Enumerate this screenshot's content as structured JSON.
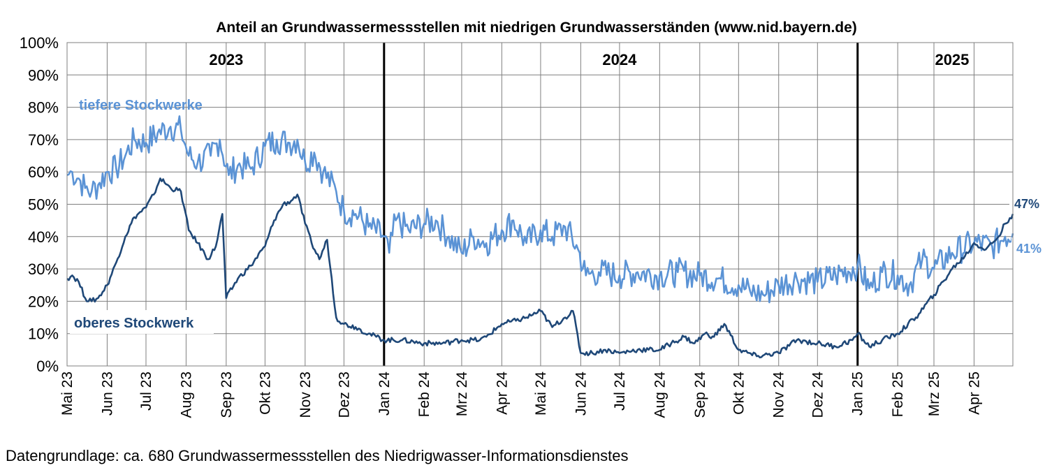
{
  "source_note": "Datengrundlage: ca. 680 Grundwassermessstellen des Niedrigwasser-Informationsdienstes",
  "colors": {
    "tiefere": "#5b93d5",
    "oberes": "#1f4878",
    "grid": "#7f7f7f",
    "year_divider": "#000000"
  },
  "chart_data": {
    "type": "line",
    "title": "Anteil an Grundwassermessstellen mit niedrigen Grundwasserständen (www.nid.bayern.de)",
    "xlabel": "",
    "ylabel": "",
    "ylim": [
      0,
      100
    ],
    "y_ticks": [
      "0%",
      "10%",
      "20%",
      "30%",
      "40%",
      "50%",
      "60%",
      "70%",
      "80%",
      "90%",
      "100%"
    ],
    "x_range": [
      "2023-05-01",
      "2025-05-01"
    ],
    "x_tick_labels": [
      "Mai 23",
      "Jun 23",
      "Jul 23",
      "Aug 23",
      "Sep 23",
      "Okt 23",
      "Nov 23",
      "Dez 23",
      "Jan 24",
      "Feb 24",
      "Mrz 24",
      "Apr 24",
      "Mai 24",
      "Jun 24",
      "Jul 24",
      "Aug 24",
      "Sep 24",
      "Okt 24",
      "Nov 24",
      "Dez 24",
      "Jan 25",
      "Feb 25",
      "Mrz 25",
      "Apr 25"
    ],
    "x_tick_dates": [
      "2023-05-01",
      "2023-06-01",
      "2023-07-01",
      "2023-08-01",
      "2023-09-01",
      "2023-10-01",
      "2023-11-01",
      "2023-12-01",
      "2024-01-01",
      "2024-02-01",
      "2024-03-01",
      "2024-04-01",
      "2024-05-01",
      "2024-06-01",
      "2024-07-01",
      "2024-08-01",
      "2024-09-01",
      "2024-10-01",
      "2024-11-01",
      "2024-12-01",
      "2025-01-01",
      "2025-02-01",
      "2025-03-01",
      "2025-04-01"
    ],
    "grid": true,
    "year_labels": [
      {
        "text": "2023",
        "date": "2023-09-01"
      },
      {
        "text": "2024",
        "date": "2024-07-01"
      },
      {
        "text": "2025",
        "date": "2025-03-15"
      }
    ],
    "year_dividers": [
      "2024-01-01",
      "2025-01-01"
    ],
    "series": [
      {
        "name": "tiefere Stockwerke",
        "end_label": "41%",
        "x": [
          "2023-05-01",
          "2023-05-05",
          "2023-05-10",
          "2023-05-15",
          "2023-05-20",
          "2023-05-25",
          "2023-06-01",
          "2023-06-08",
          "2023-06-15",
          "2023-06-22",
          "2023-07-01",
          "2023-07-10",
          "2023-07-20",
          "2023-07-28",
          "2023-08-03",
          "2023-08-10",
          "2023-08-20",
          "2023-08-27",
          "2023-09-03",
          "2023-09-10",
          "2023-09-20",
          "2023-10-01",
          "2023-10-10",
          "2023-10-20",
          "2023-10-26",
          "2023-11-01",
          "2023-11-08",
          "2023-11-15",
          "2023-11-25",
          "2023-12-01",
          "2023-12-10",
          "2023-12-20",
          "2024-01-01",
          "2024-01-05",
          "2024-01-10",
          "2024-01-20",
          "2024-02-01",
          "2024-02-10",
          "2024-02-20",
          "2024-03-01",
          "2024-03-10",
          "2024-03-20",
          "2024-04-01",
          "2024-04-10",
          "2024-04-20",
          "2024-05-01",
          "2024-05-10",
          "2024-05-20",
          "2024-05-30",
          "2024-06-05",
          "2024-06-15",
          "2024-07-01",
          "2024-07-15",
          "2024-08-01",
          "2024-08-15",
          "2024-09-01",
          "2024-09-15",
          "2024-10-01",
          "2024-10-10",
          "2024-10-20",
          "2024-11-01",
          "2024-11-15",
          "2024-12-01",
          "2024-12-15",
          "2025-01-01",
          "2025-01-10",
          "2025-01-20",
          "2025-02-01",
          "2025-02-10",
          "2025-02-20",
          "2025-03-01",
          "2025-03-15",
          "2025-04-01",
          "2025-04-15",
          "2025-04-25",
          "2025-05-01"
        ],
        "values": [
          59,
          60,
          58,
          55,
          54,
          56,
          60,
          61,
          65,
          70,
          69,
          72,
          74,
          73,
          65,
          63,
          65,
          70,
          59,
          62,
          61,
          68,
          70,
          69,
          70,
          63,
          66,
          60,
          54,
          48,
          47,
          43,
          40,
          35,
          45,
          42,
          44,
          45,
          40,
          35,
          40,
          38,
          42,
          45,
          38,
          42,
          40,
          43,
          36,
          28,
          29,
          28,
          29,
          28,
          29,
          28,
          27,
          25,
          23,
          22,
          25,
          27,
          26,
          28,
          31,
          24,
          29,
          28,
          25,
          33,
          30,
          35,
          38,
          37,
          40,
          41
        ]
      },
      {
        "name": "oberes Stockwerk",
        "end_label": "47%",
        "x": [
          "2023-05-01",
          "2023-05-05",
          "2023-05-10",
          "2023-05-15",
          "2023-05-20",
          "2023-05-25",
          "2023-06-01",
          "2023-06-08",
          "2023-06-15",
          "2023-06-22",
          "2023-07-01",
          "2023-07-07",
          "2023-07-12",
          "2023-07-20",
          "2023-07-28",
          "2023-08-03",
          "2023-08-10",
          "2023-08-18",
          "2023-08-24",
          "2023-08-29",
          "2023-09-01",
          "2023-09-10",
          "2023-09-20",
          "2023-10-01",
          "2023-10-08",
          "2023-10-15",
          "2023-10-21",
          "2023-10-26",
          "2023-11-01",
          "2023-11-06",
          "2023-11-12",
          "2023-11-18",
          "2023-11-25",
          "2023-12-01",
          "2023-12-10",
          "2023-12-20",
          "2024-01-01",
          "2024-01-15",
          "2024-02-01",
          "2024-02-15",
          "2024-03-01",
          "2024-03-15",
          "2024-03-20",
          "2024-04-01",
          "2024-04-12",
          "2024-04-20",
          "2024-05-01",
          "2024-05-10",
          "2024-05-20",
          "2024-05-26",
          "2024-06-01",
          "2024-06-10",
          "2024-06-20",
          "2024-07-01",
          "2024-07-15",
          "2024-08-01",
          "2024-08-10",
          "2024-08-20",
          "2024-08-28",
          "2024-09-05",
          "2024-09-12",
          "2024-09-20",
          "2024-10-01",
          "2024-10-15",
          "2024-11-01",
          "2024-11-15",
          "2024-12-01",
          "2024-12-15",
          "2024-12-28",
          "2025-01-01",
          "2025-01-10",
          "2025-01-20",
          "2025-02-01",
          "2025-02-15",
          "2025-03-01",
          "2025-03-15",
          "2025-03-25",
          "2025-04-01",
          "2025-04-10",
          "2025-04-20",
          "2025-04-25",
          "2025-05-01"
        ],
        "values": [
          27,
          28,
          26,
          21,
          20,
          21,
          25,
          32,
          40,
          46,
          49,
          53,
          58,
          55,
          54,
          42,
          38,
          33,
          37,
          47,
          21,
          27,
          31,
          37,
          45,
          50,
          51,
          53,
          44,
          38,
          33,
          39,
          15,
          13,
          12,
          10,
          8,
          8,
          7,
          7,
          8,
          8,
          9,
          13,
          14,
          15,
          17,
          12,
          15,
          17,
          4,
          4,
          5,
          4,
          5,
          5,
          7,
          9,
          7,
          10,
          9,
          13,
          5,
          3,
          4,
          8,
          7,
          6,
          8,
          10,
          6,
          8,
          10,
          15,
          22,
          30,
          34,
          38,
          36,
          40,
          44,
          47
        ]
      }
    ]
  }
}
